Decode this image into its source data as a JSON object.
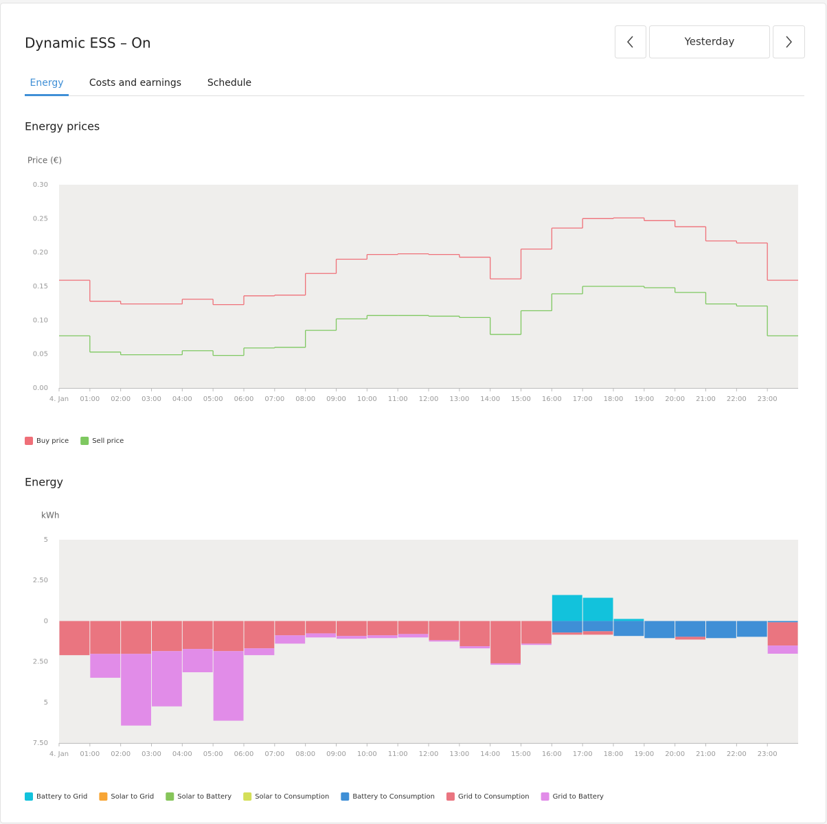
{
  "header": {
    "title": "Dynamic ESS – On",
    "period": "Yesterday"
  },
  "tabs": [
    "Energy",
    "Costs and earnings",
    "Schedule"
  ],
  "chart_data": [
    {
      "type": "line",
      "step": true,
      "title": "Energy prices",
      "ylabel": "Price (€)",
      "categories": [
        "4. Jan",
        "01:00",
        "02:00",
        "03:00",
        "04:00",
        "05:00",
        "06:00",
        "07:00",
        "08:00",
        "09:00",
        "10:00",
        "11:00",
        "12:00",
        "13:00",
        "14:00",
        "15:00",
        "16:00",
        "17:00",
        "18:00",
        "19:00",
        "20:00",
        "21:00",
        "22:00",
        "23:00"
      ],
      "series": [
        {
          "name": "Buy price",
          "color": "#ef6f78",
          "values": [
            0.159,
            0.128,
            0.124,
            0.124,
            0.131,
            0.123,
            0.136,
            0.137,
            0.169,
            0.19,
            0.197,
            0.198,
            0.197,
            0.193,
            0.161,
            0.205,
            0.236,
            0.25,
            0.251,
            0.247,
            0.238,
            0.217,
            0.214,
            0.159
          ]
        },
        {
          "name": "Sell price",
          "color": "#7ec860",
          "values": [
            0.077,
            0.053,
            0.049,
            0.049,
            0.055,
            0.048,
            0.059,
            0.06,
            0.085,
            0.102,
            0.107,
            0.107,
            0.106,
            0.104,
            0.079,
            0.114,
            0.139,
            0.15,
            0.15,
            0.148,
            0.141,
            0.124,
            0.121,
            0.077
          ]
        }
      ],
      "ylim": [
        0,
        0.3
      ],
      "yticks": [
        {
          "value": 0,
          "label": "0.00"
        },
        0.05,
        {
          "value": 0.1,
          "label": "0.10"
        },
        0.15,
        {
          "value": 0.2,
          "label": "0.20"
        },
        0.25,
        {
          "value": 0.3,
          "label": "0.30"
        }
      ],
      "grid": false
    },
    {
      "type": "bar",
      "stacked": true,
      "title": "Energy",
      "ylabel": "kWh",
      "categories": [
        "4. Jan",
        "01:00",
        "02:00",
        "03:00",
        "04:00",
        "05:00",
        "06:00",
        "07:00",
        "08:00",
        "09:00",
        "10:00",
        "11:00",
        "12:00",
        "13:00",
        "14:00",
        "15:00",
        "16:00",
        "17:00",
        "18:00",
        "19:00",
        "20:00",
        "21:00",
        "22:00",
        "23:00"
      ],
      "series": [
        {
          "name": "Battery to Grid",
          "color": "#12c2dc",
          "values": [
            0,
            0,
            0,
            0,
            0,
            0,
            0,
            0,
            0,
            0,
            0,
            0,
            0,
            0,
            0,
            0,
            1.6,
            1.43,
            0.13,
            0,
            0,
            0,
            0,
            0
          ]
        },
        {
          "name": "Solar to Grid",
          "color": "#f7a535",
          "values": [
            0,
            0,
            0,
            0,
            0,
            0,
            0,
            0,
            0,
            0,
            0,
            0,
            0,
            0,
            0,
            0,
            0,
            0,
            0,
            0,
            0,
            0,
            0,
            0
          ]
        },
        {
          "name": "Solar to Battery",
          "color": "#86c55a",
          "values": [
            0,
            0,
            0,
            0,
            0,
            0,
            0,
            0,
            0,
            0,
            0,
            0,
            0,
            0,
            0,
            0,
            0,
            0,
            0,
            0,
            0,
            0,
            0,
            0
          ]
        },
        {
          "name": "Solar to Consumption",
          "color": "#d4df58",
          "values": [
            0,
            0,
            0,
            0,
            0,
            0,
            0,
            0,
            0,
            0,
            0,
            0,
            0,
            0,
            0,
            0,
            0,
            0,
            0,
            0,
            0,
            0,
            0,
            0
          ]
        },
        {
          "name": "Battery to Consumption",
          "color": "#3f8fd6",
          "values": [
            0,
            0,
            0,
            0,
            0,
            0,
            0,
            0,
            0,
            0,
            0,
            0,
            0,
            0,
            0,
            0,
            -0.71,
            -0.63,
            -0.92,
            -1.05,
            -0.97,
            -1.05,
            -0.97,
            -0.08
          ]
        },
        {
          "name": "Grid to Consumption",
          "color": "#ea7580",
          "values": [
            -2.1,
            -2.02,
            -2.02,
            -1.85,
            -1.72,
            -1.85,
            -1.68,
            -0.88,
            -0.76,
            -0.92,
            -0.88,
            -0.8,
            -1.18,
            -1.55,
            -2.6,
            -1.39,
            -0.13,
            -0.21,
            0,
            0,
            -0.17,
            0,
            0,
            -1.43
          ]
        },
        {
          "name": "Grid to Battery",
          "color": "#e18ce8",
          "values": [
            0,
            -1.47,
            -4.41,
            -3.4,
            -1.43,
            -4.28,
            -0.42,
            -0.51,
            -0.25,
            -0.17,
            -0.17,
            -0.21,
            -0.08,
            -0.13,
            -0.09,
            -0.08,
            0,
            0,
            0,
            0,
            0,
            0,
            0,
            -0.5
          ]
        }
      ],
      "ylim": [
        -7.5,
        5
      ],
      "yticks": [
        {
          "value": -7.5,
          "label": "7.50"
        },
        {
          "value": -5,
          "label": "5"
        },
        {
          "value": -2.5,
          "label": "2.50"
        },
        0,
        {
          "value": 2.5,
          "label": "2.50"
        },
        5
      ],
      "grid": false
    }
  ]
}
